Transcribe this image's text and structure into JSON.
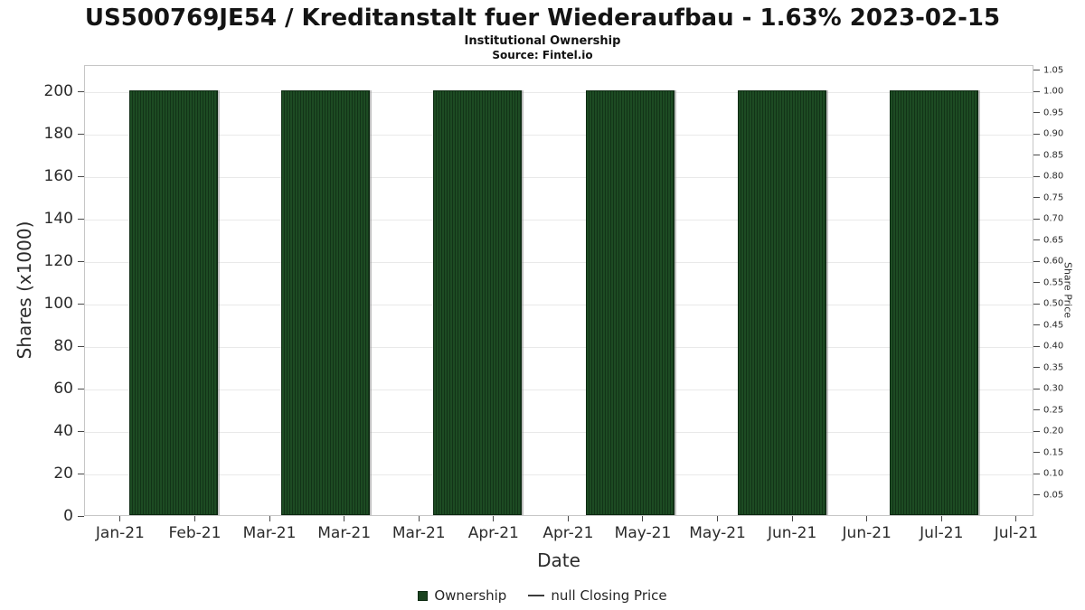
{
  "chart_data": {
    "type": "bar",
    "title": "US500769JE54 / Kreditanstalt fuer Wiederaufbau - 1.63% 2023-02-15",
    "subtitle": "Institutional Ownership",
    "source": "Source: Fintel.io",
    "xlabel": "Date",
    "ylabel": "Shares (x1000)",
    "ylabel_right": "Share Price",
    "x_tick_labels": [
      "Jan-21",
      "Feb-21",
      "Mar-21",
      "Mar-21",
      "Mar-21",
      "Apr-21",
      "Apr-21",
      "May-21",
      "May-21",
      "Jun-21",
      "Jun-21",
      "Jul-21",
      "Jul-21"
    ],
    "series": [
      {
        "name": "Ownership",
        "values": [
          200,
          200,
          200,
          200,
          200,
          200
        ]
      }
    ],
    "left_axis": {
      "min": 0,
      "max": 200,
      "step": 20
    },
    "right_axis": {
      "min": 0.05,
      "max": 1.05,
      "step": 0.05
    },
    "grid": "horizontal",
    "legend_position": "bottom-center",
    "legend": [
      {
        "label": "Ownership",
        "marker": "square",
        "color": "#1a431f"
      },
      {
        "label": "null Closing Price",
        "marker": "line",
        "color": "#3c3c3c"
      }
    ],
    "colors": {
      "bar": "#1a431f",
      "bar_stripe": "#123317"
    }
  }
}
